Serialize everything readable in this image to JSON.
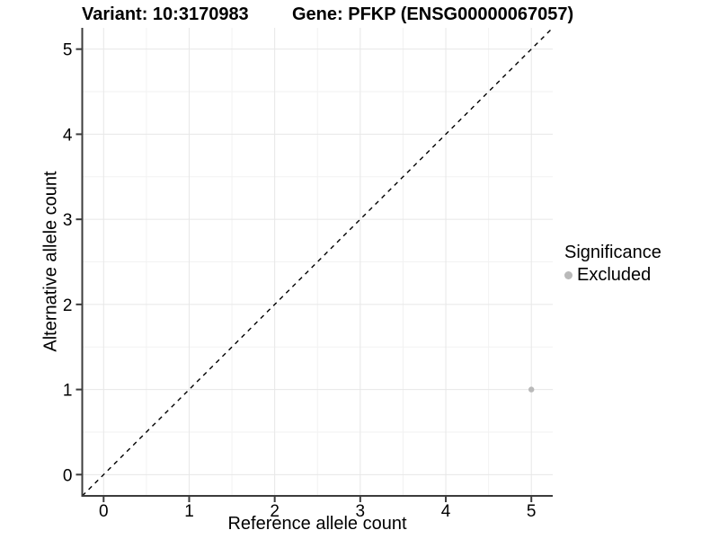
{
  "header": {
    "variant_title": "Variant: 10:3170983",
    "gene_title": "Gene: PFKP (ENSG00000067057)"
  },
  "axes": {
    "x_label": "Reference allele count",
    "y_label": "Alternative allele count"
  },
  "legend": {
    "title": "Significance",
    "items": [
      {
        "label": "Excluded",
        "color": "#b9b9b9"
      }
    ]
  },
  "chart_data": {
    "type": "scatter",
    "title": "Variant: 10:3170983   Gene: PFKP (ENSG00000067057)",
    "xlabel": "Reference allele count",
    "ylabel": "Alternative allele count",
    "xlim": [
      -0.25,
      5.25
    ],
    "ylim": [
      -0.25,
      5.25
    ],
    "x_ticks": [
      0,
      1,
      2,
      3,
      4,
      5
    ],
    "y_ticks": [
      0,
      1,
      2,
      3,
      4,
      5
    ],
    "grid": "major-and-minor",
    "legend_position": "right",
    "series": [
      {
        "name": "Excluded",
        "color": "#b9b9b9",
        "points": [
          {
            "x": 5,
            "y": 1
          }
        ]
      }
    ],
    "reference_line": {
      "kind": "identity-diagonal",
      "from": [
        -0.25,
        -0.25
      ],
      "to": [
        5.25,
        5.25
      ],
      "style": "dashed",
      "color": "#000000"
    },
    "colors": {
      "background": "#ffffff",
      "grid_major": "#e7e7e7",
      "grid_minor": "#f2f2f2",
      "axis_line": "#3c3c3c",
      "tick_mark": "#3c3c3c",
      "tick_label": "#000000"
    }
  }
}
